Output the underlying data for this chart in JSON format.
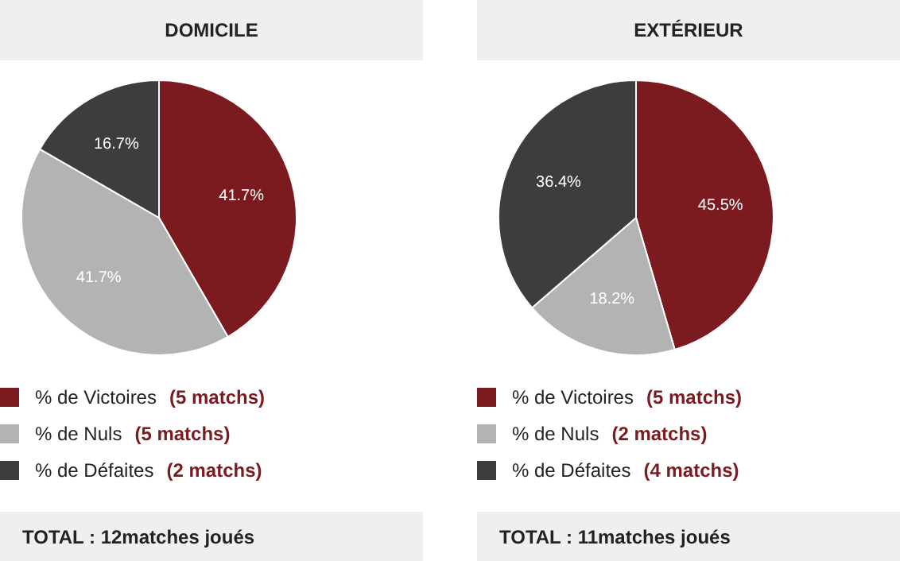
{
  "chart_data": [
    {
      "type": "pie",
      "title": "DOMICILE",
      "categories": [
        "% de Victoires",
        "% de Nuls",
        "% de Défaites"
      ],
      "values": [
        41.7,
        41.7,
        16.7
      ],
      "colors": [
        "#7b1a1f",
        "#b3b3b3",
        "#3d3d3d"
      ],
      "value_labels": [
        "41.7%",
        "41.7%",
        "16.7%"
      ],
      "legend": "bottom",
      "annotations": [
        "(5 matchs)",
        "(5 matchs)",
        "(2 matchs)",
        "TOTAL : 12matches joués"
      ]
    },
    {
      "type": "pie",
      "title": "EXTÉRIEUR",
      "categories": [
        "% de Victoires",
        "% de Nuls",
        "% de Défaites"
      ],
      "values": [
        45.5,
        18.2,
        36.4
      ],
      "colors": [
        "#7b1a1f",
        "#b3b3b3",
        "#3d3d3d"
      ],
      "value_labels": [
        "45.5%",
        "18.2%",
        "36.4%"
      ],
      "legend": "bottom",
      "annotations": [
        "(5 matchs)",
        "(2 matchs)",
        "(4 matchs)",
        "TOTAL : 11matches joués"
      ]
    }
  ]
}
